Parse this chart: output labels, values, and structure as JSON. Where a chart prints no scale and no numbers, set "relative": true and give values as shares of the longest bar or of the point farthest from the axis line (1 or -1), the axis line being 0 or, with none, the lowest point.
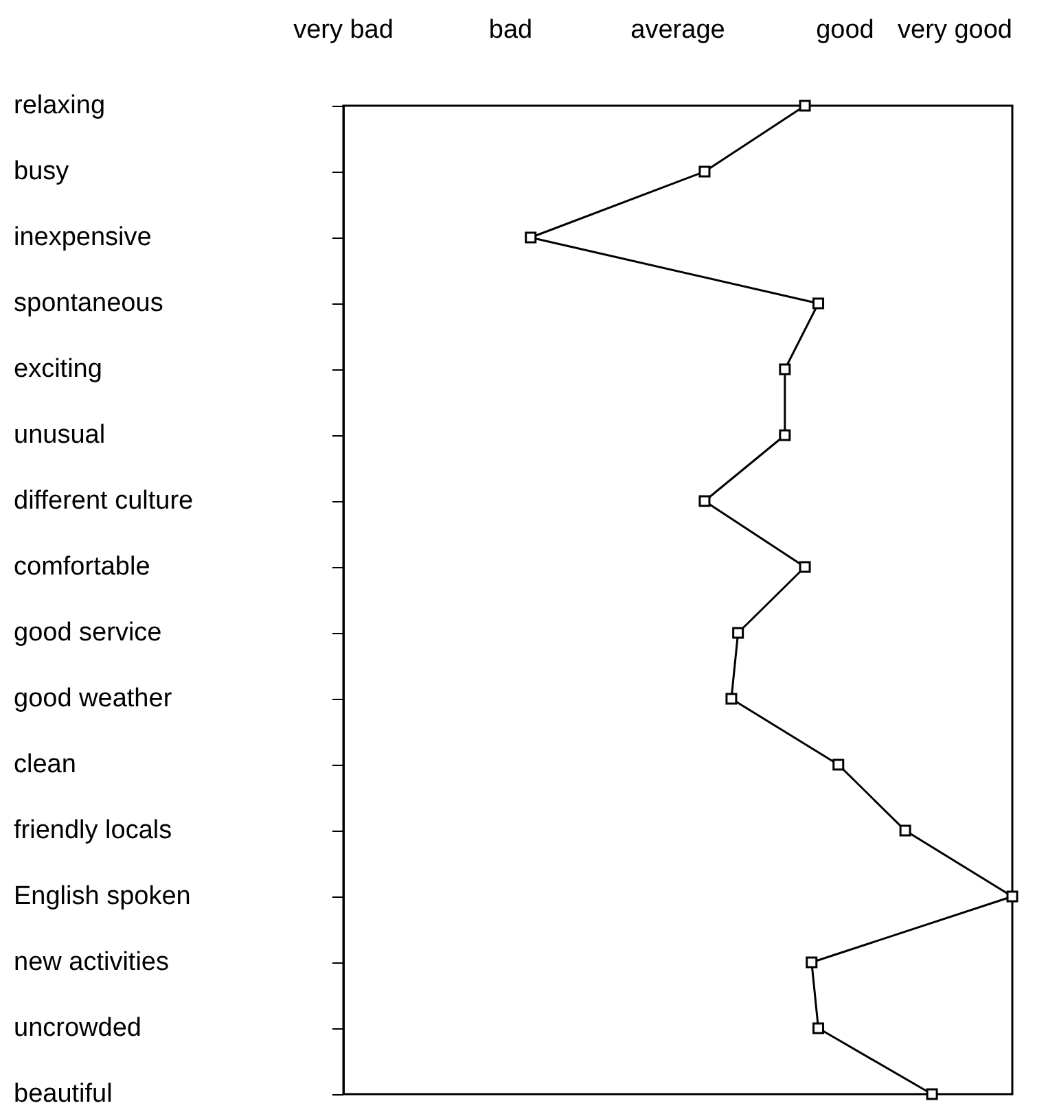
{
  "chart_data": {
    "type": "line",
    "orientation": "horizontal",
    "relative": true,
    "categories": [
      "relaxing",
      "busy",
      "inexpensive",
      "spontaneous",
      "exciting",
      "unusual",
      "different culture",
      "comfortable",
      "good service",
      "good weather",
      "clean",
      "friendly locals",
      "English spoken",
      "new activities",
      "uncrowded",
      "beautiful"
    ],
    "series": [
      {
        "color": "#000000",
        "values": [
          0.69,
          0.54,
          0.28,
          0.71,
          0.66,
          0.66,
          0.54,
          0.69,
          0.59,
          0.58,
          0.74,
          0.84,
          1,
          0.7,
          0.71,
          0.88
        ]
      }
    ],
    "annotations": [
      "very bad",
      "bad",
      "average",
      "good",
      "very good"
    ],
    "marker": "square",
    "line_style": "solid",
    "grid": false
  }
}
